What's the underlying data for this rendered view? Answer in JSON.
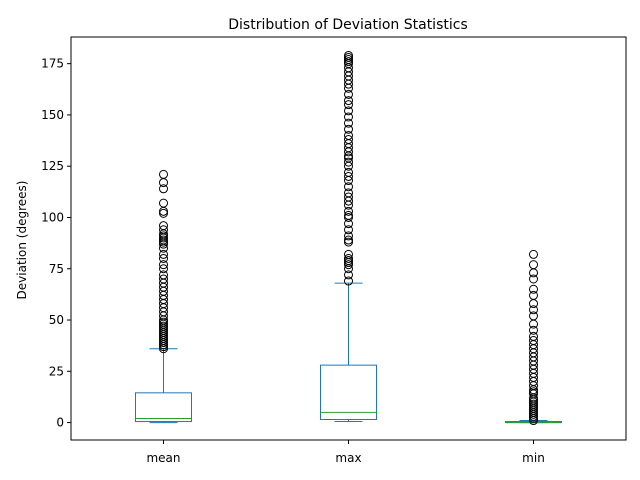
{
  "chart_data": {
    "type": "box",
    "title": "Distribution of Deviation Statistics",
    "xlabel": "",
    "ylabel": "Deviation (degrees)",
    "ylim": [
      -8.5,
      188
    ],
    "yticks": [
      0,
      25,
      50,
      75,
      100,
      125,
      150,
      175
    ],
    "categories": [
      "mean",
      "max",
      "min"
    ],
    "colors": {
      "box": "#1f77b4",
      "median": "#2ca02c",
      "flier": "#000000"
    },
    "boxes": [
      {
        "label": "mean",
        "whisker_low": 0,
        "q1": 0.5,
        "median": 2,
        "q3": 14.5,
        "whisker_high": 36,
        "outliers": [
          36,
          37,
          38,
          39,
          40,
          41,
          42,
          43,
          44,
          45,
          46,
          47,
          48,
          49,
          50,
          52,
          54,
          56,
          58,
          60,
          62,
          64,
          66,
          68,
          70,
          72,
          75,
          77,
          80,
          82,
          85,
          87,
          88,
          89,
          90,
          91,
          92,
          94,
          96,
          102,
          103,
          107,
          114,
          117,
          121
        ]
      },
      {
        "label": "max",
        "whisker_low": 0.5,
        "q1": 1.5,
        "median": 5,
        "q3": 28,
        "whisker_high": 68,
        "outliers": [
          69,
          72,
          75,
          77,
          78,
          79,
          80,
          82,
          88,
          89,
          91,
          94,
          97,
          100,
          101,
          103,
          106,
          108,
          110,
          112,
          115,
          118,
          120,
          122,
          125,
          127,
          129,
          130,
          132,
          134,
          136,
          138,
          140,
          143,
          146,
          149,
          152,
          155,
          157,
          160,
          163,
          165,
          167,
          169,
          171,
          173,
          175,
          176,
          177,
          178,
          179
        ]
      },
      {
        "label": "min",
        "whisker_low": 0,
        "q1": 0,
        "median": 0,
        "q3": 0.5,
        "whisker_high": 1,
        "outliers": [
          1,
          2,
          3,
          4,
          5,
          6,
          7,
          8,
          9,
          10,
          11,
          12,
          14,
          15,
          16,
          18,
          20,
          22,
          24,
          26,
          28,
          30,
          32,
          34,
          36,
          38,
          40,
          42,
          45,
          48,
          52,
          55,
          58,
          62,
          65,
          70,
          73,
          77,
          82
        ]
      }
    ]
  }
}
